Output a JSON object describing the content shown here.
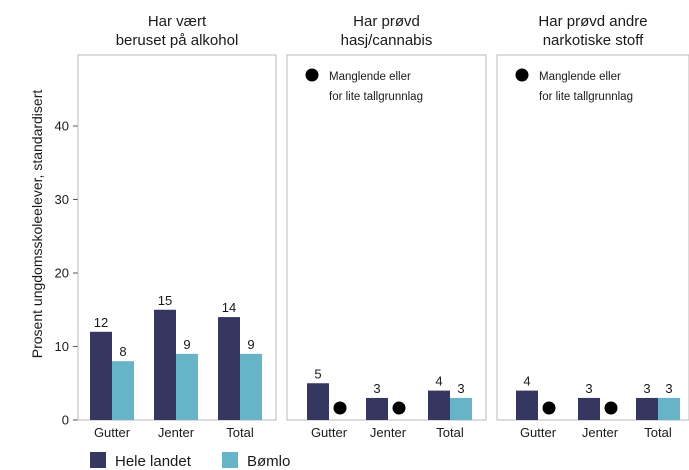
{
  "chart_data": {
    "type": "bar",
    "ylabel": "Prosent ungdomsskoleelever, standardisert",
    "ylim": [
      0,
      50
    ],
    "yticks": [
      0,
      10,
      20,
      30,
      40
    ],
    "categories": [
      "Gutter",
      "Jenter",
      "Total"
    ],
    "legend_position": "bottom-left",
    "series": [
      {
        "name": "Hele landet",
        "color": "#353760"
      },
      {
        "name": "Bømlo",
        "color": "#67b3c8"
      }
    ],
    "missing_color": "#000000",
    "panels": [
      {
        "title_lines": [
          "Har vært",
          "beruset på alkohol"
        ],
        "values": {
          "Hele landet": [
            12,
            15,
            14
          ],
          "Bømlo": [
            8,
            9,
            9
          ]
        },
        "note_lines": []
      },
      {
        "title_lines": [
          "Har prøvd",
          "hasj/cannabis"
        ],
        "values": {
          "Hele landet": [
            5,
            3,
            4
          ],
          "Bømlo": [
            null,
            null,
            3
          ]
        },
        "note_lines": [
          "Manglende eller",
          "for lite tallgrunnlag"
        ]
      },
      {
        "title_lines": [
          "Har prøvd andre",
          "narkotiske stoff"
        ],
        "values": {
          "Hele landet": [
            4,
            3,
            3
          ],
          "Bømlo": [
            null,
            null,
            3
          ]
        },
        "note_lines": [
          "Manglende eller",
          "for lite tallgrunnlag"
        ]
      }
    ]
  }
}
